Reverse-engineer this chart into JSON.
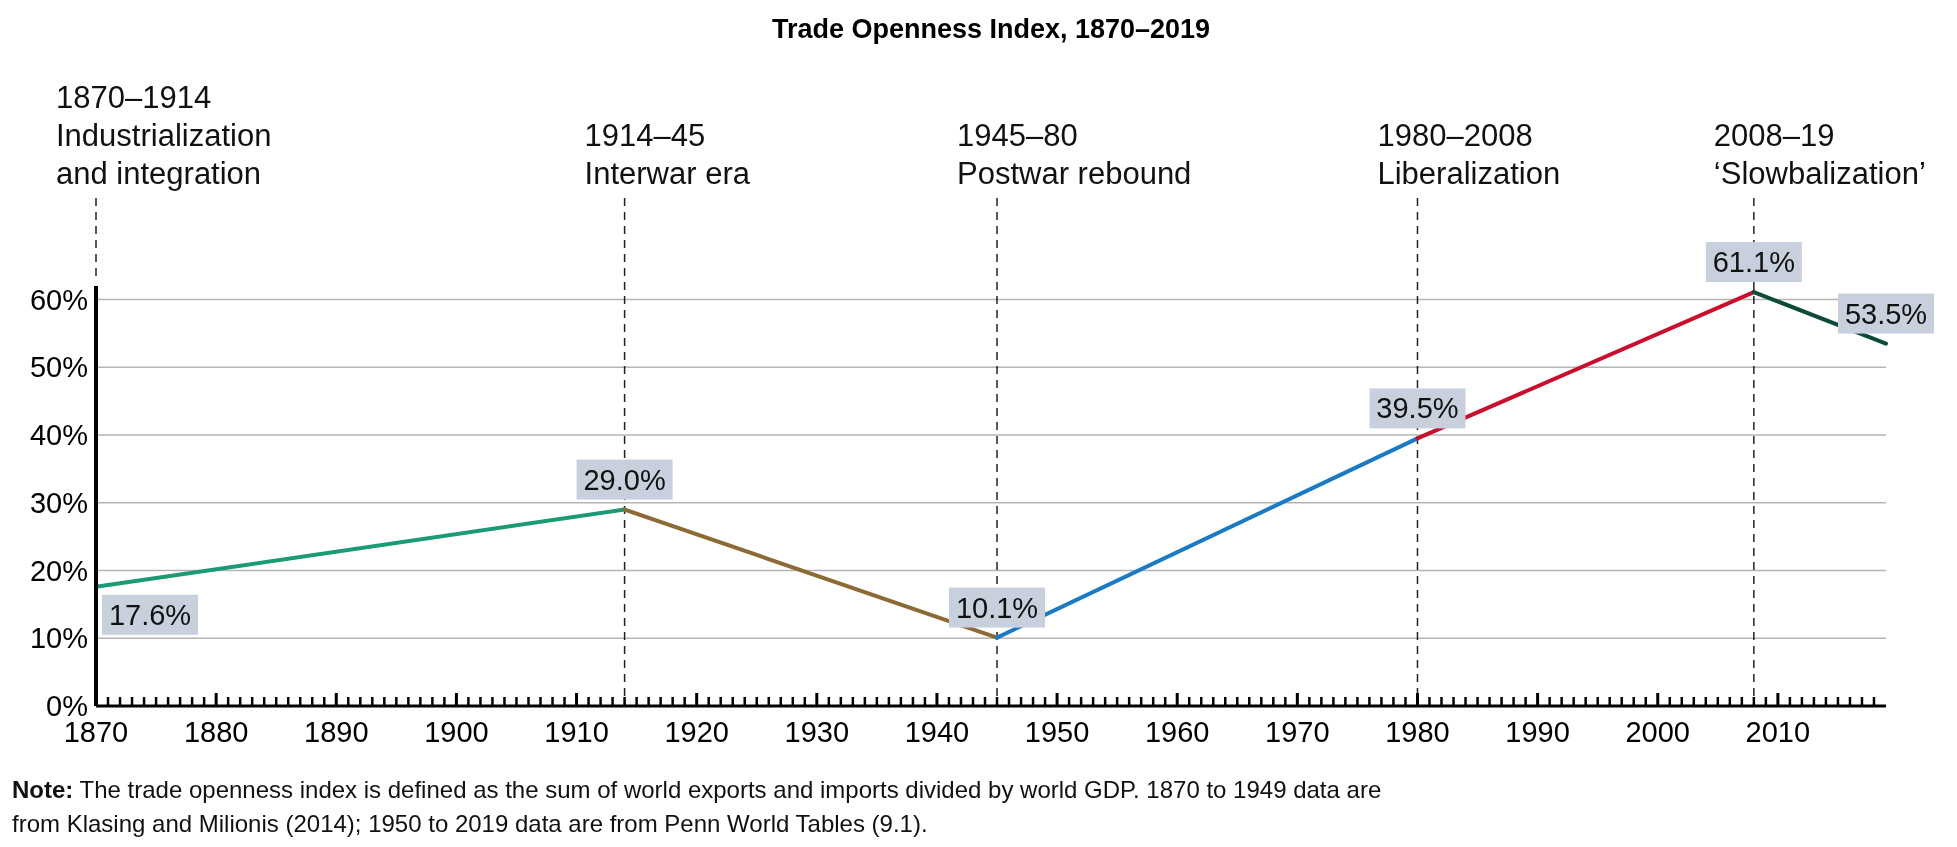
{
  "chart_data": {
    "type": "line",
    "title": "Trade Openness Index, 1870–2019",
    "xlim": [
      1870,
      2019
    ],
    "xticks": [
      1870,
      1880,
      1890,
      1900,
      1910,
      1920,
      1930,
      1940,
      1950,
      1960,
      1970,
      1980,
      1990,
      2000,
      2010,
      {
        "value": 1871,
        "label": null
      },
      {
        "value": 1872,
        "label": null
      },
      {
        "value": 1873,
        "label": null
      },
      {
        "value": 1874,
        "label": null
      },
      {
        "value": 1875,
        "label": null
      },
      {
        "value": 1876,
        "label": null
      },
      {
        "value": 1877,
        "label": null
      },
      {
        "value": 1878,
        "label": null
      },
      {
        "value": 1879,
        "label": null
      },
      {
        "value": 1881,
        "label": null
      },
      {
        "value": 1882,
        "label": null
      },
      {
        "value": 1883,
        "label": null
      },
      {
        "value": 1884,
        "label": null
      },
      {
        "value": 1885,
        "label": null
      },
      {
        "value": 1886,
        "label": null
      },
      {
        "value": 1887,
        "label": null
      },
      {
        "value": 1888,
        "label": null
      },
      {
        "value": 1889,
        "label": null
      },
      {
        "value": 1891,
        "label": null
      },
      {
        "value": 1892,
        "label": null
      },
      {
        "value": 1893,
        "label": null
      },
      {
        "value": 1894,
        "label": null
      },
      {
        "value": 1895,
        "label": null
      },
      {
        "value": 1896,
        "label": null
      },
      {
        "value": 1897,
        "label": null
      },
      {
        "value": 1898,
        "label": null
      },
      {
        "value": 1899,
        "label": null
      },
      {
        "value": 1901,
        "label": null
      },
      {
        "value": 1902,
        "label": null
      },
      {
        "value": 1903,
        "label": null
      },
      {
        "value": 1904,
        "label": null
      },
      {
        "value": 1905,
        "label": null
      },
      {
        "value": 1906,
        "label": null
      },
      {
        "value": 1907,
        "label": null
      },
      {
        "value": 1908,
        "label": null
      },
      {
        "value": 1909,
        "label": null
      },
      {
        "value": 1911,
        "label": null
      },
      {
        "value": 1912,
        "label": null
      },
      {
        "value": 1913,
        "label": null
      },
      {
        "value": 1914,
        "label": null
      },
      {
        "value": 1915,
        "label": null
      },
      {
        "value": 1916,
        "label": null
      },
      {
        "value": 1917,
        "label": null
      },
      {
        "value": 1918,
        "label": null
      },
      {
        "value": 1919,
        "label": null
      },
      {
        "value": 1921,
        "label": null
      },
      {
        "value": 1922,
        "label": null
      },
      {
        "value": 1923,
        "label": null
      },
      {
        "value": 1924,
        "label": null
      },
      {
        "value": 1925,
        "label": null
      },
      {
        "value": 1926,
        "label": null
      },
      {
        "value": 1927,
        "label": null
      },
      {
        "value": 1928,
        "label": null
      },
      {
        "value": 1929,
        "label": null
      },
      {
        "value": 1931,
        "label": null
      },
      {
        "value": 1932,
        "label": null
      },
      {
        "value": 1933,
        "label": null
      },
      {
        "value": 1934,
        "label": null
      },
      {
        "value": 1935,
        "label": null
      },
      {
        "value": 1936,
        "label": null
      },
      {
        "value": 1937,
        "label": null
      },
      {
        "value": 1938,
        "label": null
      },
      {
        "value": 1939,
        "label": null
      },
      {
        "value": 1941,
        "label": null
      },
      {
        "value": 1942,
        "label": null
      },
      {
        "value": 1943,
        "label": null
      },
      {
        "value": 1944,
        "label": null
      },
      {
        "value": 1945,
        "label": null
      },
      {
        "value": 1946,
        "label": null
      },
      {
        "value": 1947,
        "label": null
      },
      {
        "value": 1948,
        "label": null
      },
      {
        "value": 1949,
        "label": null
      },
      {
        "value": 1951,
        "label": null
      },
      {
        "value": 1952,
        "label": null
      },
      {
        "value": 1953,
        "label": null
      },
      {
        "value": 1954,
        "label": null
      },
      {
        "value": 1955,
        "label": null
      },
      {
        "value": 1956,
        "label": null
      },
      {
        "value": 1957,
        "label": null
      },
      {
        "value": 1958,
        "label": null
      },
      {
        "value": 1959,
        "label": null
      },
      {
        "value": 1961,
        "label": null
      },
      {
        "value": 1962,
        "label": null
      },
      {
        "value": 1963,
        "label": null
      },
      {
        "value": 1964,
        "label": null
      },
      {
        "value": 1965,
        "label": null
      },
      {
        "value": 1966,
        "label": null
      },
      {
        "value": 1967,
        "label": null
      },
      {
        "value": 1968,
        "label": null
      },
      {
        "value": 1969,
        "label": null
      },
      {
        "value": 1971,
        "label": null
      },
      {
        "value": 1972,
        "label": null
      },
      {
        "value": 1973,
        "label": null
      },
      {
        "value": 1974,
        "label": null
      },
      {
        "value": 1975,
        "label": null
      },
      {
        "value": 1976,
        "label": null
      },
      {
        "value": 1977,
        "label": null
      },
      {
        "value": 1978,
        "label": null
      },
      {
        "value": 1979,
        "label": null
      },
      {
        "value": 1981,
        "label": null
      },
      {
        "value": 1982,
        "label": null
      },
      {
        "value": 1983,
        "label": null
      },
      {
        "value": 1984,
        "label": null
      },
      {
        "value": 1985,
        "label": null
      },
      {
        "value": 1986,
        "label": null
      },
      {
        "value": 1987,
        "label": null
      },
      {
        "value": 1988,
        "label": null
      },
      {
        "value": 1989,
        "label": null
      },
      {
        "value": 1991,
        "label": null
      },
      {
        "value": 1992,
        "label": null
      },
      {
        "value": 1993,
        "label": null
      },
      {
        "value": 1994,
        "label": null
      },
      {
        "value": 1995,
        "label": null
      },
      {
        "value": 1996,
        "label": null
      },
      {
        "value": 1997,
        "label": null
      },
      {
        "value": 1998,
        "label": null
      },
      {
        "value": 1999,
        "label": null
      },
      {
        "value": 2001,
        "label": null
      },
      {
        "value": 2002,
        "label": null
      },
      {
        "value": 2003,
        "label": null
      },
      {
        "value": 2004,
        "label": null
      },
      {
        "value": 2005,
        "label": null
      },
      {
        "value": 2006,
        "label": null
      },
      {
        "value": 2007,
        "label": null
      },
      {
        "value": 2008,
        "label": null
      },
      {
        "value": 2009,
        "label": null
      },
      {
        "value": 2011,
        "label": null
      },
      {
        "value": 2012,
        "label": null
      },
      {
        "value": 2013,
        "label": null
      },
      {
        "value": 2014,
        "label": null
      },
      {
        "value": 2015,
        "label": null
      },
      {
        "value": 2016,
        "label": null
      },
      {
        "value": 2017,
        "label": null
      },
      {
        "value": 2018,
        "label": null
      }
    ],
    "ylim": [
      0,
      62
    ],
    "yticks": [
      {
        "value": 0,
        "label": "0%"
      },
      {
        "value": 10,
        "label": "10%"
      },
      {
        "value": 20,
        "label": "20%"
      },
      {
        "value": 30,
        "label": "30%"
      },
      {
        "value": 40,
        "label": "40%"
      },
      {
        "value": 50,
        "label": "50%"
      },
      {
        "value": 60,
        "label": "60%"
      }
    ],
    "grid": "y",
    "marker": "none",
    "line_style": "solid",
    "series": [
      {
        "color": "#1a9a75",
        "x": [
          1870,
          1914
        ],
        "values": [
          17.6,
          29.0
        ],
        "value_labels": [
          "17.6%",
          "29.0%"
        ]
      },
      {
        "color": "#8c6a35",
        "x": [
          1914,
          1945
        ],
        "values": [
          29.0,
          10.1
        ],
        "value_labels": [
          null,
          "10.1%"
        ]
      },
      {
        "color": "#1a7ac4",
        "x": [
          1945,
          1980
        ],
        "values": [
          10.1,
          39.5
        ],
        "value_labels": [
          null,
          "39.5%"
        ]
      },
      {
        "color": "#c8102e",
        "x": [
          1980,
          2008
        ],
        "values": [
          39.5,
          61.1
        ],
        "value_labels": [
          null,
          "61.1%"
        ]
      },
      {
        "color": "#0d4a3a",
        "x": [
          2008,
          2019
        ],
        "values": [
          61.1,
          53.5
        ],
        "value_labels": [
          null,
          "53.5%"
        ]
      }
    ],
    "ref_lines": [
      {
        "axis": "x",
        "value": 1870,
        "label": "1870–1914\nIndustrialization\nand integration",
        "line_style": "dashed"
      },
      {
        "axis": "x",
        "value": 1914,
        "label": "1914–45\nInterwar era",
        "line_style": "dashed"
      },
      {
        "axis": "x",
        "value": 1945,
        "label": "1945–80\nPostwar rebound",
        "line_style": "dashed"
      },
      {
        "axis": "x",
        "value": 1980,
        "label": "1980–2008\nLiberalization",
        "line_style": "dashed"
      },
      {
        "axis": "x",
        "value": 2008,
        "label": "2008–19\n‘Slowbalization’",
        "line_style": "dashed"
      }
    ],
    "annotations": [
      "Note: The trade openness index is defined as the sum of world exports and imports divided by world GDP. 1870 to 1949 data are from Klasing and Milionis (2014); 1950 to 2019 data are from Penn World Tables (9.1)."
    ]
  }
}
